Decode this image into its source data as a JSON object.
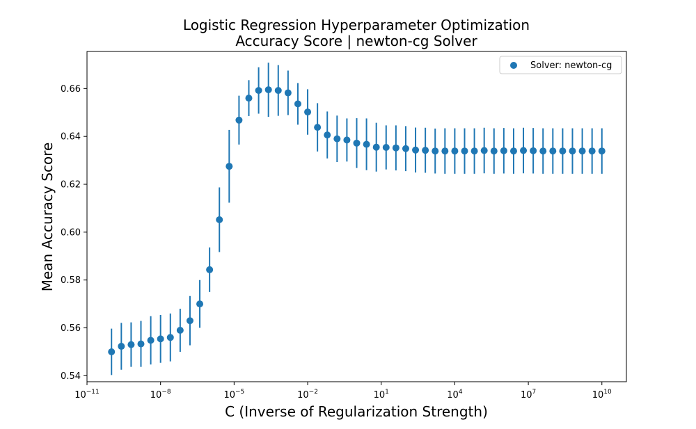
{
  "chart_data": {
    "type": "scatter",
    "title": "Logistic Regression Hyperparameter Optimization",
    "subtitle": "Accuracy Score | newton-cg Solver",
    "xlabel": "C (Inverse of Regularization Strength)",
    "ylabel": "Mean Accuracy Score",
    "xscale": "log",
    "xlim_exponent": [
      -11,
      11
    ],
    "ylim": [
      0.5375,
      0.6755
    ],
    "x_ticks": [
      -11,
      -8,
      -5,
      -2,
      1,
      4,
      7,
      10
    ],
    "y_ticks": [
      0.54,
      0.56,
      0.58,
      0.6,
      0.62,
      0.64,
      0.66
    ],
    "y_tick_labels": [
      "0.54",
      "0.56",
      "0.58",
      "0.60",
      "0.62",
      "0.64",
      "0.66"
    ],
    "legend": {
      "label": "Solver: newton-cg",
      "position": "top-right"
    },
    "grid": false,
    "color": "#1f77b4",
    "series": [
      {
        "name": "Solver: newton-cg",
        "x_log10": [
          -10.0,
          -9.6,
          -9.2,
          -8.8,
          -8.4,
          -8.0,
          -7.6,
          -7.2,
          -6.8,
          -6.4,
          -6.0,
          -5.6,
          -5.2,
          -4.8,
          -4.4,
          -4.0,
          -3.6,
          -3.2,
          -2.8,
          -2.4,
          -2.0,
          -1.6,
          -1.2,
          -0.8,
          -0.4,
          0.0,
          0.4,
          0.8,
          1.2,
          1.6,
          2.0,
          2.4,
          2.8,
          3.2,
          3.6,
          4.0,
          4.4,
          4.8,
          5.2,
          5.6,
          6.0,
          6.4,
          6.8,
          7.2,
          7.6,
          8.0,
          8.4,
          8.8,
          9.2,
          9.6,
          10.0
        ],
        "y": [
          0.55,
          0.5523,
          0.553,
          0.5533,
          0.5548,
          0.5554,
          0.556,
          0.559,
          0.563,
          0.57,
          0.5843,
          0.6052,
          0.6275,
          0.6468,
          0.656,
          0.6592,
          0.6595,
          0.6592,
          0.6582,
          0.6536,
          0.6502,
          0.6438,
          0.6406,
          0.639,
          0.6385,
          0.6372,
          0.6367,
          0.6355,
          0.6354,
          0.6352,
          0.6349,
          0.6343,
          0.6342,
          0.6339,
          0.6339,
          0.6339,
          0.6339,
          0.6339,
          0.6341,
          0.6339,
          0.634,
          0.6339,
          0.6341,
          0.634,
          0.6339,
          0.6339,
          0.6339,
          0.6339,
          0.6339,
          0.6339,
          0.6339
        ],
        "error": [
          0.0097,
          0.0098,
          0.0093,
          0.0096,
          0.0101,
          0.01,
          0.01,
          0.009,
          0.0103,
          0.01,
          0.0093,
          0.0135,
          0.0152,
          0.0102,
          0.0075,
          0.0097,
          0.0113,
          0.0106,
          0.0093,
          0.0087,
          0.0095,
          0.0101,
          0.0098,
          0.0097,
          0.009,
          0.0104,
          0.0108,
          0.0102,
          0.0092,
          0.0094,
          0.0094,
          0.0094,
          0.0094,
          0.0094,
          0.0095,
          0.0095,
          0.0095,
          0.0095,
          0.0095,
          0.0095,
          0.0095,
          0.0095,
          0.0095,
          0.0095,
          0.0095,
          0.0095,
          0.0095,
          0.0095,
          0.0095,
          0.0095,
          0.0095
        ]
      }
    ]
  }
}
